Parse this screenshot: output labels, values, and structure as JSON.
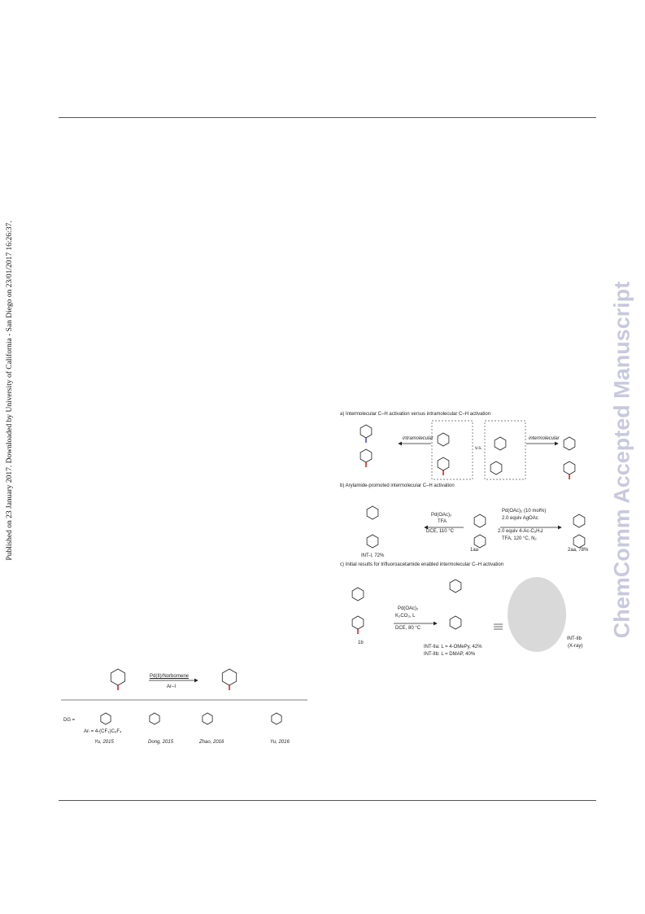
{
  "side_note": "Published on 23 January 2017. Downloaded by University of California - San Diego on 23/01/2017 16:26:37.",
  "watermark": "ChemComm Accepted Manuscript",
  "scheme_left": {
    "conditions_top": "Pd(II)/Norbornene",
    "conditions_bottom": "Ar–I",
    "dg_label": "DG =",
    "ar_note": "Arₗ = 4-(CF₃)C₆F₄",
    "refs": [
      "Yu, 2015",
      "Dong, 2015",
      "Zhao, 2016",
      "Yu, 2016"
    ]
  },
  "scheme_right": {
    "panel_a": "a) Intermolecular C–H activation versus intramolecular C–H activation",
    "intramolecular": "intramolecular",
    "intermolecular": "intermolecular",
    "vs": "v.s.",
    "panel_b": "b) Arylamide-promoted intermolecular C–H activation",
    "cond_b1": [
      "Pd(OAc)₂",
      "TFA",
      "DCE, 110 °C"
    ],
    "cond_b2": [
      "Pd(OAc)₂ (10 mol%)",
      "2.0 equiv AgOAc",
      "2.0 equiv 4-Ac-C₆H₄I",
      "TFA, 120 °C, N₂"
    ],
    "label_1aa": "1aa",
    "label_2aa": "2aa, 78%",
    "label_int1": "INT-I, 72%",
    "panel_c": "c) Initial results for trifluoroacetamide enabled intermolecular C–H activation",
    "cond_c": [
      "Pd(OAc)₂",
      "K₂CO₃, L",
      "DCE, 80 °C"
    ],
    "label_1b": "1b",
    "int_iia": "INT-IIa: L = 4-OMePy, 42%",
    "int_iib": "INT-IIb: L = DMAP, 40%",
    "xray": [
      "INT-IIb",
      "(X-ray)"
    ]
  }
}
